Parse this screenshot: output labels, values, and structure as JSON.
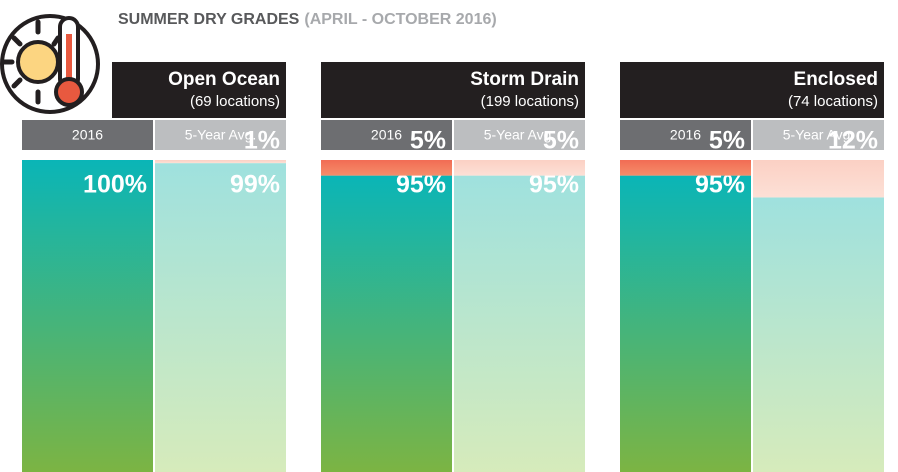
{
  "chart_data": {
    "type": "stacked-bar-panels",
    "title": "SUMMER DRY GRADES",
    "subtitle": "(APRIL - OCTOBER 2016)",
    "ylim": [
      0,
      100
    ],
    "column_header_colors": [
      "#6d6e71",
      "#bcbec0"
    ],
    "panels": [
      {
        "name": "Open Ocean",
        "note": "(69 locations)",
        "categories": [
          "2016",
          "5-Year Avg."
        ],
        "series": [
          {
            "colors": [
              [
                "#0ab5b7",
                "#7cb443"
              ],
              [
                "#9fe1de",
                "#d6ebbb"
              ]
            ],
            "values": [
              100,
              99
            ],
            "value_labels": [
              "100%",
              "99%"
            ]
          },
          {
            "colors": [
              [
                "#f26c54",
                "#f58d6a"
              ],
              [
                "#fbd0c4",
                "#fde0d6"
              ]
            ],
            "values": [
              null,
              1
            ],
            "value_labels": [
              null,
              "1%"
            ]
          }
        ]
      },
      {
        "name": "Storm Drain",
        "note": "(199 locations)",
        "categories": [
          "2016",
          "5-Year Avg."
        ],
        "series": [
          {
            "colors": [
              [
                "#0ab5b7",
                "#7cb443"
              ],
              [
                "#9fe1de",
                "#d6ebbb"
              ]
            ],
            "values": [
              95,
              95
            ],
            "value_labels": [
              "95%",
              "95%"
            ]
          },
          {
            "colors": [
              [
                "#f26c54",
                "#f58d6a"
              ],
              [
                "#fbd0c4",
                "#fde0d6"
              ]
            ],
            "values": [
              5,
              5
            ],
            "value_labels": [
              "5%",
              "5%"
            ]
          }
        ]
      },
      {
        "name": "Enclosed",
        "note": "(74 locations)",
        "categories": [
          "2016",
          "5-Year Avg."
        ],
        "series": [
          {
            "colors": [
              [
                "#0ab5b7",
                "#7cb443"
              ],
              [
                "#9fe1de",
                "#d6ebbb"
              ]
            ],
            "values": [
              95,
              88
            ],
            "value_labels": [
              "95%",
              "88%"
            ]
          },
          {
            "colors": [
              [
                "#f26c54",
                "#f58d6a"
              ],
              [
                "#fbd0c4",
                "#fde0d6"
              ]
            ],
            "values": [
              5,
              12
            ],
            "value_labels": [
              "5%",
              "12%"
            ]
          }
        ]
      }
    ]
  }
}
